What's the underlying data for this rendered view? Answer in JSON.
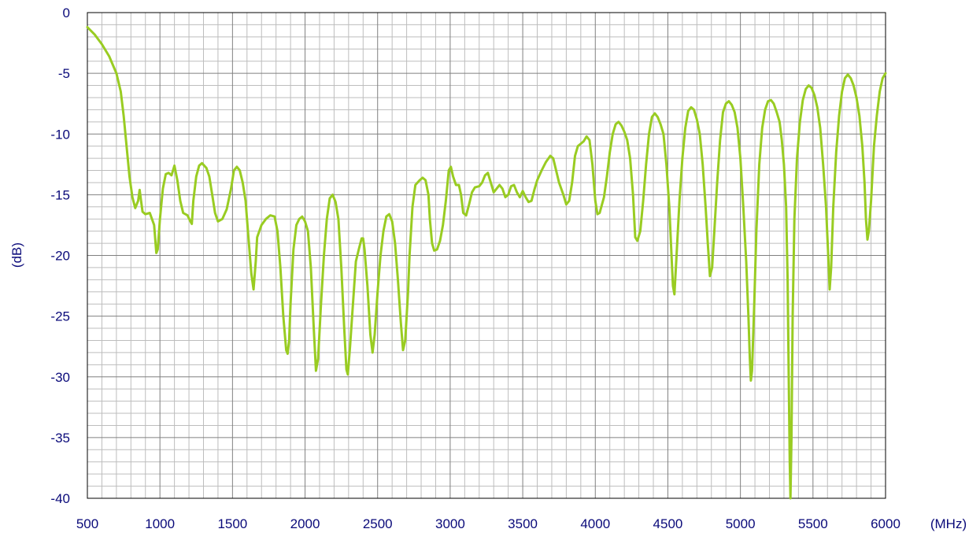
{
  "chart_data": {
    "type": "line",
    "title": "",
    "xlabel": "(MHz)",
    "ylabel": "(dB)",
    "xlim": [
      500,
      6000
    ],
    "ylim": [
      -40,
      0
    ],
    "x_ticks": [
      500,
      1000,
      1500,
      2000,
      2500,
      3000,
      3500,
      4000,
      4500,
      5000,
      5500,
      6000
    ],
    "y_ticks": [
      0,
      -5,
      -10,
      -15,
      -20,
      -25,
      -30,
      -35,
      -40
    ],
    "grid": true,
    "legend": "none",
    "series": [
      {
        "color": "#99cc22",
        "points": [
          [
            500,
            -1.2
          ],
          [
            550,
            -1.8
          ],
          [
            600,
            -2.6
          ],
          [
            650,
            -3.6
          ],
          [
            700,
            -5.0
          ],
          [
            730,
            -6.5
          ],
          [
            750,
            -8.5
          ],
          [
            770,
            -11.0
          ],
          [
            790,
            -13.5
          ],
          [
            810,
            -15.2
          ],
          [
            830,
            -16.1
          ],
          [
            850,
            -15.5
          ],
          [
            860,
            -14.6
          ],
          [
            870,
            -15.5
          ],
          [
            880,
            -16.4
          ],
          [
            900,
            -16.6
          ],
          [
            930,
            -16.5
          ],
          [
            960,
            -17.5
          ],
          [
            975,
            -19.8
          ],
          [
            985,
            -19.5
          ],
          [
            1000,
            -17.0
          ],
          [
            1020,
            -14.5
          ],
          [
            1040,
            -13.3
          ],
          [
            1060,
            -13.2
          ],
          [
            1080,
            -13.4
          ],
          [
            1100,
            -12.6
          ],
          [
            1120,
            -13.8
          ],
          [
            1140,
            -15.5
          ],
          [
            1160,
            -16.5
          ],
          [
            1190,
            -16.7
          ],
          [
            1210,
            -17.2
          ],
          [
            1220,
            -17.4
          ],
          [
            1230,
            -15.5
          ],
          [
            1250,
            -13.5
          ],
          [
            1270,
            -12.6
          ],
          [
            1290,
            -12.4
          ],
          [
            1320,
            -12.8
          ],
          [
            1340,
            -13.5
          ],
          [
            1360,
            -15.0
          ],
          [
            1380,
            -16.5
          ],
          [
            1400,
            -17.2
          ],
          [
            1430,
            -17.0
          ],
          [
            1460,
            -16.2
          ],
          [
            1490,
            -14.5
          ],
          [
            1510,
            -13.0
          ],
          [
            1530,
            -12.7
          ],
          [
            1550,
            -13.0
          ],
          [
            1570,
            -14.0
          ],
          [
            1590,
            -15.5
          ],
          [
            1610,
            -18.5
          ],
          [
            1630,
            -21.5
          ],
          [
            1645,
            -22.8
          ],
          [
            1660,
            -20.5
          ],
          [
            1670,
            -18.5
          ],
          [
            1700,
            -17.5
          ],
          [
            1730,
            -17.0
          ],
          [
            1760,
            -16.7
          ],
          [
            1790,
            -16.8
          ],
          [
            1810,
            -18.0
          ],
          [
            1830,
            -21.0
          ],
          [
            1850,
            -25.0
          ],
          [
            1870,
            -27.8
          ],
          [
            1880,
            -28.1
          ],
          [
            1890,
            -27.0
          ],
          [
            1900,
            -24.0
          ],
          [
            1920,
            -19.5
          ],
          [
            1940,
            -17.5
          ],
          [
            1960,
            -17.0
          ],
          [
            1980,
            -16.8
          ],
          [
            2000,
            -17.2
          ],
          [
            2020,
            -18.0
          ],
          [
            2040,
            -21.0
          ],
          [
            2060,
            -26.0
          ],
          [
            2075,
            -29.5
          ],
          [
            2090,
            -28.5
          ],
          [
            2110,
            -24.0
          ],
          [
            2130,
            -20.0
          ],
          [
            2150,
            -17.0
          ],
          [
            2170,
            -15.3
          ],
          [
            2190,
            -15.0
          ],
          [
            2210,
            -15.6
          ],
          [
            2230,
            -17.0
          ],
          [
            2250,
            -21.0
          ],
          [
            2270,
            -26.0
          ],
          [
            2285,
            -29.4
          ],
          [
            2295,
            -29.8
          ],
          [
            2310,
            -27.5
          ],
          [
            2330,
            -24.0
          ],
          [
            2350,
            -20.5
          ],
          [
            2370,
            -19.5
          ],
          [
            2390,
            -18.6
          ],
          [
            2400,
            -18.6
          ],
          [
            2410,
            -19.5
          ],
          [
            2430,
            -22.5
          ],
          [
            2450,
            -26.5
          ],
          [
            2465,
            -28.0
          ],
          [
            2480,
            -26.5
          ],
          [
            2500,
            -23.0
          ],
          [
            2520,
            -20.0
          ],
          [
            2540,
            -18.0
          ],
          [
            2560,
            -16.8
          ],
          [
            2580,
            -16.6
          ],
          [
            2600,
            -17.2
          ],
          [
            2620,
            -19.0
          ],
          [
            2640,
            -22.0
          ],
          [
            2660,
            -25.5
          ],
          [
            2675,
            -27.8
          ],
          [
            2690,
            -27.0
          ],
          [
            2710,
            -23.0
          ],
          [
            2720,
            -20.0
          ],
          [
            2740,
            -16.0
          ],
          [
            2760,
            -14.2
          ],
          [
            2790,
            -13.8
          ],
          [
            2810,
            -13.6
          ],
          [
            2830,
            -13.8
          ],
          [
            2850,
            -15.0
          ],
          [
            2860,
            -17.0
          ],
          [
            2875,
            -19.0
          ],
          [
            2890,
            -19.6
          ],
          [
            2910,
            -19.5
          ],
          [
            2930,
            -18.8
          ],
          [
            2950,
            -17.5
          ],
          [
            2970,
            -15.5
          ],
          [
            2990,
            -13.0
          ],
          [
            3005,
            -12.7
          ],
          [
            3020,
            -13.5
          ],
          [
            3040,
            -14.2
          ],
          [
            3060,
            -14.2
          ],
          [
            3075,
            -15.0
          ],
          [
            3090,
            -16.5
          ],
          [
            3110,
            -16.7
          ],
          [
            3130,
            -15.8
          ],
          [
            3150,
            -14.8
          ],
          [
            3170,
            -14.4
          ],
          [
            3200,
            -14.3
          ],
          [
            3220,
            -14.0
          ],
          [
            3240,
            -13.4
          ],
          [
            3260,
            -13.2
          ],
          [
            3280,
            -14.0
          ],
          [
            3300,
            -14.8
          ],
          [
            3320,
            -14.5
          ],
          [
            3340,
            -14.2
          ],
          [
            3360,
            -14.5
          ],
          [
            3380,
            -15.2
          ],
          [
            3400,
            -15.0
          ],
          [
            3420,
            -14.3
          ],
          [
            3440,
            -14.2
          ],
          [
            3460,
            -14.8
          ],
          [
            3480,
            -15.2
          ],
          [
            3500,
            -14.7
          ],
          [
            3520,
            -15.2
          ],
          [
            3540,
            -15.6
          ],
          [
            3560,
            -15.5
          ],
          [
            3580,
            -14.6
          ],
          [
            3600,
            -13.8
          ],
          [
            3630,
            -13.0
          ],
          [
            3660,
            -12.3
          ],
          [
            3690,
            -11.8
          ],
          [
            3710,
            -12.0
          ],
          [
            3730,
            -13.0
          ],
          [
            3750,
            -14.0
          ],
          [
            3780,
            -15.0
          ],
          [
            3800,
            -15.8
          ],
          [
            3820,
            -15.5
          ],
          [
            3840,
            -14.0
          ],
          [
            3860,
            -11.8
          ],
          [
            3880,
            -11.0
          ],
          [
            3900,
            -10.8
          ],
          [
            3920,
            -10.6
          ],
          [
            3940,
            -10.2
          ],
          [
            3960,
            -10.5
          ],
          [
            3980,
            -12.5
          ],
          [
            4000,
            -15.5
          ],
          [
            4015,
            -16.6
          ],
          [
            4030,
            -16.5
          ],
          [
            4060,
            -15.2
          ],
          [
            4080,
            -13.5
          ],
          [
            4100,
            -11.5
          ],
          [
            4120,
            -10.0
          ],
          [
            4140,
            -9.2
          ],
          [
            4160,
            -9.0
          ],
          [
            4180,
            -9.3
          ],
          [
            4200,
            -9.8
          ],
          [
            4220,
            -10.5
          ],
          [
            4240,
            -12.0
          ],
          [
            4260,
            -15.0
          ],
          [
            4275,
            -18.5
          ],
          [
            4290,
            -18.8
          ],
          [
            4310,
            -18.0
          ],
          [
            4330,
            -15.5
          ],
          [
            4350,
            -12.5
          ],
          [
            4370,
            -10.0
          ],
          [
            4390,
            -8.6
          ],
          [
            4410,
            -8.3
          ],
          [
            4430,
            -8.6
          ],
          [
            4450,
            -9.2
          ],
          [
            4470,
            -10.0
          ],
          [
            4490,
            -12.5
          ],
          [
            4510,
            -16.0
          ],
          [
            4525,
            -20.0
          ],
          [
            4535,
            -22.5
          ],
          [
            4545,
            -23.2
          ],
          [
            4560,
            -20.0
          ],
          [
            4580,
            -15.5
          ],
          [
            4600,
            -12.0
          ],
          [
            4620,
            -9.5
          ],
          [
            4640,
            -8.1
          ],
          [
            4660,
            -7.8
          ],
          [
            4680,
            -8.0
          ],
          [
            4700,
            -8.8
          ],
          [
            4720,
            -10.0
          ],
          [
            4740,
            -12.5
          ],
          [
            4760,
            -16.0
          ],
          [
            4775,
            -19.0
          ],
          [
            4790,
            -21.7
          ],
          [
            4805,
            -21.0
          ],
          [
            4820,
            -18.0
          ],
          [
            4840,
            -14.0
          ],
          [
            4860,
            -10.5
          ],
          [
            4880,
            -8.2
          ],
          [
            4900,
            -7.5
          ],
          [
            4920,
            -7.3
          ],
          [
            4940,
            -7.6
          ],
          [
            4960,
            -8.2
          ],
          [
            4980,
            -9.5
          ],
          [
            5000,
            -12.0
          ],
          [
            5020,
            -16.0
          ],
          [
            5040,
            -20.5
          ],
          [
            5055,
            -25.0
          ],
          [
            5065,
            -28.5
          ],
          [
            5072,
            -30.3
          ],
          [
            5080,
            -29.5
          ],
          [
            5095,
            -24.0
          ],
          [
            5110,
            -18.0
          ],
          [
            5130,
            -12.5
          ],
          [
            5150,
            -9.5
          ],
          [
            5170,
            -8.0
          ],
          [
            5190,
            -7.3
          ],
          [
            5210,
            -7.2
          ],
          [
            5230,
            -7.5
          ],
          [
            5250,
            -8.2
          ],
          [
            5270,
            -9.0
          ],
          [
            5285,
            -10.5
          ],
          [
            5300,
            -12.5
          ],
          [
            5315,
            -16.0
          ],
          [
            5325,
            -22.0
          ],
          [
            5333,
            -30.0
          ],
          [
            5340,
            -37.0
          ],
          [
            5345,
            -40.0
          ],
          [
            5352,
            -35.0
          ],
          [
            5360,
            -25.0
          ],
          [
            5372,
            -17.0
          ],
          [
            5390,
            -12.0
          ],
          [
            5410,
            -9.0
          ],
          [
            5430,
            -7.2
          ],
          [
            5450,
            -6.3
          ],
          [
            5470,
            -6.0
          ],
          [
            5490,
            -6.2
          ],
          [
            5510,
            -6.8
          ],
          [
            5530,
            -7.8
          ],
          [
            5550,
            -9.5
          ],
          [
            5570,
            -12.5
          ],
          [
            5590,
            -16.0
          ],
          [
            5605,
            -20.0
          ],
          [
            5615,
            -22.8
          ],
          [
            5625,
            -21.0
          ],
          [
            5640,
            -16.0
          ],
          [
            5660,
            -11.5
          ],
          [
            5680,
            -8.5
          ],
          [
            5700,
            -6.5
          ],
          [
            5720,
            -5.4
          ],
          [
            5740,
            -5.1
          ],
          [
            5760,
            -5.4
          ],
          [
            5780,
            -6.0
          ],
          [
            5800,
            -7.0
          ],
          [
            5820,
            -8.5
          ],
          [
            5840,
            -11.0
          ],
          [
            5855,
            -14.0
          ],
          [
            5865,
            -17.0
          ],
          [
            5875,
            -18.7
          ],
          [
            5885,
            -18.0
          ],
          [
            5900,
            -15.5
          ],
          [
            5920,
            -11.0
          ],
          [
            5940,
            -8.5
          ],
          [
            5960,
            -6.5
          ],
          [
            5980,
            -5.4
          ],
          [
            6000,
            -5.0
          ]
        ]
      }
    ]
  }
}
